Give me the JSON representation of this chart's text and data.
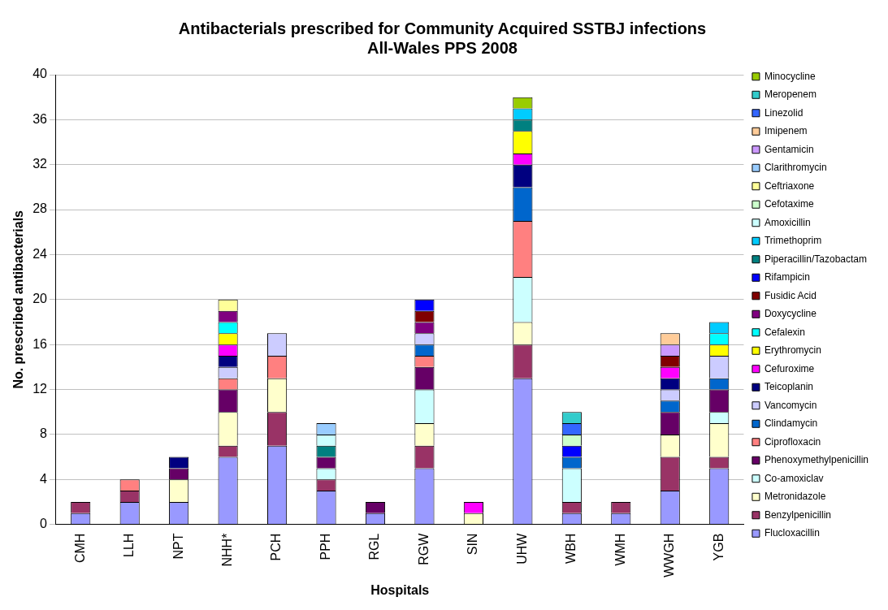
{
  "chart_data": {
    "type": "bar",
    "stacked": true,
    "title": [
      "Antibacterials prescribed for Community Acquired SSTBJ infections",
      "All-Wales PPS 2008"
    ],
    "xlabel": "Hospitals",
    "ylabel": "No. prescribed antibacterials",
    "categories": [
      "CMH",
      "LLH",
      "NPT",
      "NHH*",
      "PCH",
      "PPH",
      "RGL",
      "RGW",
      "SIN",
      "UHW",
      "WBH",
      "WMH",
      "WWGH",
      "YGB"
    ],
    "ylim": [
      0,
      40
    ],
    "yticks": [
      0,
      4,
      8,
      12,
      16,
      20,
      24,
      28,
      32,
      36,
      40
    ],
    "grid": "y",
    "legend": "right",
    "series": [
      {
        "name": "Flucloxacillin",
        "color": "#9999ff",
        "values": [
          1,
          2,
          2,
          6,
          7,
          3,
          1,
          5,
          null,
          13,
          1,
          1,
          3,
          5
        ]
      },
      {
        "name": "Benzylpenicillin",
        "color": "#993366",
        "values": [
          1,
          1,
          null,
          1,
          3,
          1,
          null,
          2,
          null,
          3,
          1,
          1,
          3,
          1
        ]
      },
      {
        "name": "Metronidazole",
        "color": "#ffffcc",
        "values": [
          null,
          null,
          2,
          3,
          3,
          null,
          null,
          2,
          1,
          2,
          null,
          null,
          2,
          3
        ]
      },
      {
        "name": "Co-amoxiclav",
        "color": "#ccffff",
        "values": [
          null,
          null,
          null,
          null,
          null,
          1,
          null,
          3,
          null,
          4,
          3,
          null,
          null,
          1
        ]
      },
      {
        "name": "Phenoxymethylpenicillin",
        "color": "#660066",
        "values": [
          null,
          null,
          1,
          2,
          null,
          1,
          1,
          2,
          null,
          null,
          null,
          null,
          2,
          2
        ]
      },
      {
        "name": "Ciprofloxacin",
        "color": "#ff8080",
        "values": [
          null,
          1,
          null,
          1,
          2,
          null,
          null,
          1,
          null,
          5,
          null,
          null,
          null,
          null
        ]
      },
      {
        "name": "Clindamycin",
        "color": "#0066cc",
        "values": [
          null,
          null,
          null,
          null,
          null,
          null,
          null,
          1,
          null,
          3,
          1,
          null,
          1,
          1
        ]
      },
      {
        "name": "Vancomycin",
        "color": "#ccccff",
        "values": [
          null,
          null,
          null,
          1,
          2,
          null,
          null,
          1,
          null,
          null,
          null,
          null,
          1,
          2
        ]
      },
      {
        "name": "Teicoplanin",
        "color": "#000080",
        "values": [
          null,
          null,
          1,
          1,
          null,
          null,
          null,
          null,
          null,
          2,
          null,
          null,
          1,
          null
        ]
      },
      {
        "name": "Cefuroxime",
        "color": "#ff00ff",
        "values": [
          null,
          null,
          null,
          1,
          null,
          null,
          null,
          null,
          1,
          1,
          null,
          null,
          1,
          null
        ]
      },
      {
        "name": "Erythromycin",
        "color": "#ffff00",
        "values": [
          null,
          null,
          null,
          1,
          null,
          null,
          null,
          null,
          null,
          2,
          null,
          null,
          null,
          1
        ]
      },
      {
        "name": "Cefalexin",
        "color": "#00ffff",
        "values": [
          null,
          null,
          null,
          1,
          null,
          null,
          null,
          null,
          null,
          null,
          null,
          null,
          null,
          1
        ]
      },
      {
        "name": "Doxycycline",
        "color": "#800080",
        "values": [
          null,
          null,
          null,
          1,
          null,
          null,
          null,
          1,
          null,
          null,
          null,
          null,
          null,
          null
        ]
      },
      {
        "name": "Fusidic Acid",
        "color": "#800000",
        "values": [
          null,
          null,
          null,
          null,
          null,
          null,
          null,
          1,
          null,
          null,
          null,
          null,
          1,
          null
        ]
      },
      {
        "name": "Rifampicin",
        "color": "#0000ff",
        "values": [
          null,
          null,
          null,
          null,
          null,
          null,
          null,
          1,
          null,
          null,
          1,
          null,
          null,
          null
        ]
      },
      {
        "name": "Piperacillin/Tazobactam",
        "color": "#008080",
        "values": [
          null,
          null,
          null,
          null,
          null,
          1,
          null,
          null,
          null,
          1,
          null,
          null,
          null,
          null
        ]
      },
      {
        "name": "Trimethoprim",
        "color": "#00ccff",
        "values": [
          null,
          null,
          null,
          null,
          null,
          null,
          null,
          null,
          null,
          1,
          null,
          null,
          null,
          1
        ]
      },
      {
        "name": "Amoxicillin",
        "color": "#ccffff",
        "values": [
          null,
          null,
          null,
          null,
          null,
          1,
          null,
          null,
          null,
          null,
          null,
          null,
          null,
          null
        ]
      },
      {
        "name": "Cefotaxime",
        "color": "#ccffcc",
        "values": [
          null,
          null,
          null,
          null,
          null,
          null,
          null,
          null,
          null,
          null,
          1,
          null,
          null,
          null
        ]
      },
      {
        "name": "Ceftriaxone",
        "color": "#ffff99",
        "values": [
          null,
          null,
          null,
          1,
          null,
          null,
          null,
          null,
          null,
          null,
          null,
          null,
          null,
          null
        ]
      },
      {
        "name": "Clarithromycin",
        "color": "#99ccff",
        "values": [
          null,
          null,
          null,
          null,
          null,
          1,
          null,
          null,
          null,
          null,
          null,
          null,
          null,
          null
        ]
      },
      {
        "name": "Gentamicin",
        "color": "#cc99ff",
        "values": [
          null,
          null,
          null,
          null,
          null,
          null,
          null,
          null,
          null,
          null,
          null,
          null,
          1,
          null
        ]
      },
      {
        "name": "Imipenem",
        "color": "#ffcc99",
        "values": [
          null,
          null,
          null,
          null,
          null,
          null,
          null,
          null,
          null,
          null,
          null,
          null,
          1,
          null
        ]
      },
      {
        "name": "Linezolid",
        "color": "#3366ff",
        "values": [
          null,
          null,
          null,
          null,
          null,
          null,
          null,
          null,
          null,
          null,
          1,
          null,
          null,
          null
        ]
      },
      {
        "name": "Meropenem",
        "color": "#33cccc",
        "values": [
          null,
          null,
          null,
          null,
          null,
          null,
          null,
          null,
          null,
          null,
          1,
          null,
          null,
          null
        ]
      },
      {
        "name": "Minocycline",
        "color": "#99cc00",
        "values": [
          null,
          null,
          null,
          null,
          null,
          null,
          null,
          null,
          null,
          1,
          null,
          null,
          null,
          null
        ]
      }
    ]
  }
}
